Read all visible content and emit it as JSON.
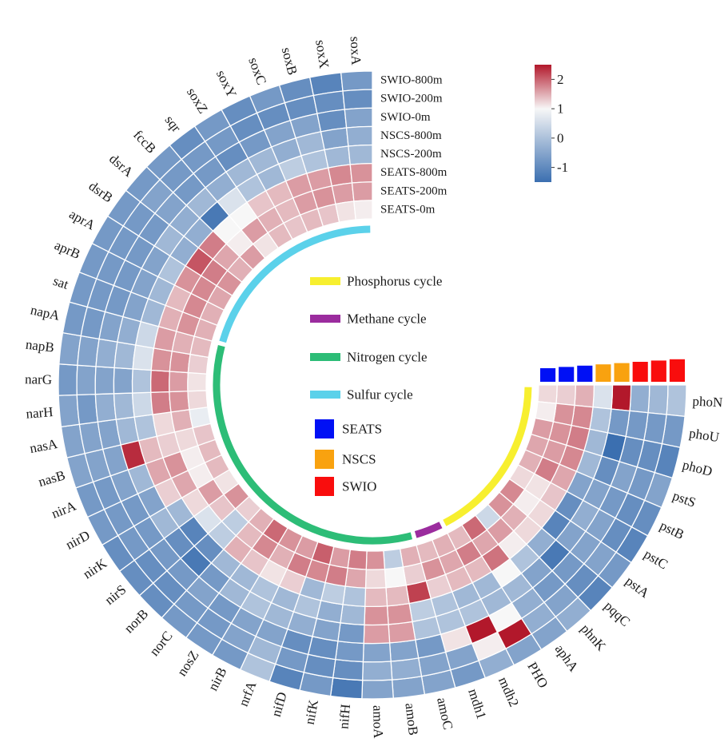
{
  "chart_data": {
    "type": "heatmap",
    "layout": "circular",
    "rows": [
      "SWIO-800m",
      "SWIO-200m",
      "SWIO-0m",
      "NSCS-800m",
      "NSCS-200m",
      "SEATS-800m",
      "SEATS-200m",
      "SEATS-0m"
    ],
    "row_groups": [
      "SWIO",
      "SWIO",
      "SWIO",
      "NSCS",
      "NSCS",
      "SEATS",
      "SEATS",
      "SEATS"
    ],
    "genes": [
      "phoN",
      "phoU",
      "phoD",
      "pstS",
      "pstB",
      "pstC",
      "pstA",
      "pqqC",
      "phnK",
      "aphA",
      "PHO",
      "mdh2",
      "mdh1",
      "amoC",
      "amoB",
      "amoA",
      "nifH",
      "nifK",
      "nifD",
      "nrfA",
      "nirB",
      "nosZ",
      "norC",
      "norB",
      "nirS",
      "nirK",
      "nirD",
      "nirA",
      "nasB",
      "nasA",
      "narH",
      "narG",
      "napB",
      "napA",
      "sat",
      "aprB",
      "aprA",
      "dsrB",
      "dsrA",
      "fccB",
      "sqr",
      "soxZ",
      "soxY",
      "soxC",
      "soxB",
      "soxX",
      "soxA"
    ],
    "values": [
      [
        -0.5,
        -0.9,
        -1.1,
        -0.8,
        -1.0,
        -1.1,
        -0.9,
        -1.1,
        -0.7,
        -0.8,
        -0.8,
        -0.7,
        -0.9,
        -0.8,
        -0.8,
        -0.8,
        -1.2,
        -0.9,
        -1.1,
        -0.5,
        -0.9,
        -0.9,
        -0.9,
        -1.0,
        -1.0,
        -1.0,
        -0.9,
        -0.9,
        -0.8,
        -0.8,
        -0.8,
        -0.9,
        -0.8,
        -0.9,
        -0.9,
        -0.9,
        -0.9,
        -0.9,
        -0.9,
        -0.9,
        -1.0,
        -0.9,
        -1.0,
        -0.9,
        -1.0,
        -1.1,
        -0.9
      ],
      [
        -0.6,
        -0.9,
        -1.0,
        -0.9,
        -1.0,
        -1.0,
        -0.8,
        -1.0,
        -0.8,
        -0.7,
        2.2,
        0.1,
        -0.8,
        -0.8,
        -0.7,
        -0.7,
        -1.0,
        -1.0,
        -0.9,
        -0.6,
        -0.8,
        -0.9,
        -0.9,
        -1.0,
        -1.0,
        -0.9,
        -0.9,
        -0.9,
        -0.8,
        -0.8,
        -0.9,
        -0.8,
        -0.8,
        -0.9,
        -0.9,
        -0.9,
        -0.9,
        -0.9,
        -0.8,
        -0.9,
        -0.9,
        -0.9,
        -1.0,
        -1.0,
        -1.0,
        -1.0,
        -1.0
      ],
      [
        -0.7,
        -0.9,
        -1.0,
        -0.8,
        -0.9,
        -0.8,
        -0.8,
        -0.9,
        -0.9,
        -0.7,
        0.0,
        2.2,
        0.2,
        -0.9,
        -0.8,
        -0.8,
        -0.9,
        -1.0,
        -1.0,
        -0.8,
        -0.8,
        -0.9,
        -0.8,
        -0.9,
        -0.9,
        -0.9,
        -0.9,
        -0.8,
        -0.8,
        -0.8,
        -0.7,
        -0.8,
        -0.7,
        -0.8,
        -0.9,
        -0.9,
        -0.9,
        -0.9,
        -0.8,
        -0.9,
        -0.9,
        -1.0,
        -0.9,
        -0.8,
        -0.8,
        -1.0,
        -0.8
      ],
      [
        2.2,
        -0.9,
        -1.3,
        -1.0,
        -0.8,
        -0.7,
        -0.8,
        -1.2,
        -0.8,
        -0.6,
        -0.6,
        -0.5,
        -0.5,
        -0.5,
        0.9,
        0.9,
        -0.9,
        -0.8,
        -0.7,
        -0.6,
        -0.5,
        -0.6,
        -0.9,
        -1.2,
        -1.0,
        -0.6,
        -0.8,
        -0.6,
        2.0,
        -0.6,
        -0.6,
        -0.8,
        -0.6,
        -0.7,
        -0.8,
        -0.8,
        -0.8,
        -0.6,
        -0.7,
        -0.6,
        -0.7,
        -0.6,
        -0.6,
        -0.7,
        -0.6,
        -0.8,
        -0.7
      ],
      [
        -0.2,
        -0.5,
        -0.6,
        -0.6,
        -0.8,
        -1.0,
        -1.1,
        -0.7,
        -0.5,
        0.0,
        -0.6,
        -0.6,
        -0.5,
        -0.4,
        1.0,
        1.0,
        -0.6,
        -0.7,
        -0.5,
        -0.6,
        -0.5,
        -0.6,
        -0.6,
        -1.0,
        -1.1,
        -0.6,
        0.4,
        0.8,
        0.6,
        -0.5,
        -0.3,
        -0.5,
        -0.2,
        -0.3,
        -0.6,
        -0.6,
        -0.5,
        -0.7,
        -0.7,
        -1.2,
        -0.2,
        -0.5,
        -0.6,
        -0.4,
        -0.5,
        -0.6,
        -0.6
      ],
      [
        0.7,
        1.1,
        1.2,
        1.1,
        0.8,
        0.5,
        0.3,
        0.3,
        0.1,
        1.3,
        0.6,
        0.6,
        0.4,
        1.8,
        0.6,
        0.6,
        -0.5,
        -0.4,
        -0.6,
        0.4,
        0.2,
        0.5,
        0.7,
        -0.4,
        -0.2,
        0.3,
        0.8,
        1.0,
        0.4,
        0.3,
        1.2,
        1.4,
        1.0,
        0.9,
        0.7,
        0.6,
        1.0,
        1.6,
        1.2,
        0.0,
        0.0,
        0.5,
        0.6,
        0.9,
        0.9,
        1.1,
        1.0
      ],
      [
        0.4,
        1.0,
        1.0,
        0.9,
        1.2,
        0.2,
        0.1,
        0.7,
        0.9,
        0.8,
        1.2,
        0.8,
        1.0,
        0.4,
        0.0,
        0.3,
        0.8,
        1.2,
        1.1,
        1.2,
        0.7,
        1.1,
        0.6,
        -0.4,
        0.5,
        0.9,
        0.1,
        0.1,
        0.3,
        0.7,
        1.0,
        0.9,
        1.0,
        0.7,
        1.0,
        1.1,
        1.1,
        1.2,
        0.8,
        0.1,
        0.9,
        0.7,
        0.6,
        0.9,
        1.0,
        0.9,
        0.9
      ],
      [
        0.3,
        0.1,
        0.9,
        0.8,
        0.7,
        0.3,
        1.1,
        1.0,
        -0.3,
        1.4,
        0.6,
        0.7,
        0.6,
        0.7,
        -0.4,
        1.0,
        1.2,
        0.9,
        1.5,
        0.9,
        1.0,
        1.4,
        0.7,
        0.4,
        1.0,
        0.2,
        0.6,
        0.6,
        0.5,
        -0.1,
        0.3,
        0.2,
        0.4,
        0.6,
        0.7,
        0.7,
        0.8,
        1.0,
        0.7,
        0.9,
        0.2,
        0.6,
        0.5,
        0.6,
        0.5,
        0.2,
        0.1
      ]
    ],
    "colorbar": {
      "range": [
        -1.5,
        2.5
      ],
      "ticks": [
        "2",
        "1",
        "0",
        "-1"
      ],
      "colors": [
        "#3b6fb0",
        "#f7f7f7",
        "#b2182b"
      ]
    },
    "cycles": [
      {
        "label": "Phosphorus cycle",
        "color": "#f7ef2f",
        "first_gene": "phoN",
        "last_gene": "PHO"
      },
      {
        "label": "Methane cycle",
        "color": "#9b2c9e",
        "first_gene": "mdh2",
        "last_gene": "mdh1"
      },
      {
        "label": "Nitrogen cycle",
        "color": "#2dbd77",
        "first_gene": "amoC",
        "last_gene": "napA"
      },
      {
        "label": "Sulfur cycle",
        "color": "#5bd1ea",
        "first_gene": "sat",
        "last_gene": "soxA"
      }
    ],
    "regions": [
      {
        "label": "SEATS",
        "color": "#0010f5"
      },
      {
        "label": "NSCS",
        "color": "#f9a20f"
      },
      {
        "label": "SWIO",
        "color": "#f90d0d"
      }
    ],
    "title": "",
    "grid": true
  }
}
